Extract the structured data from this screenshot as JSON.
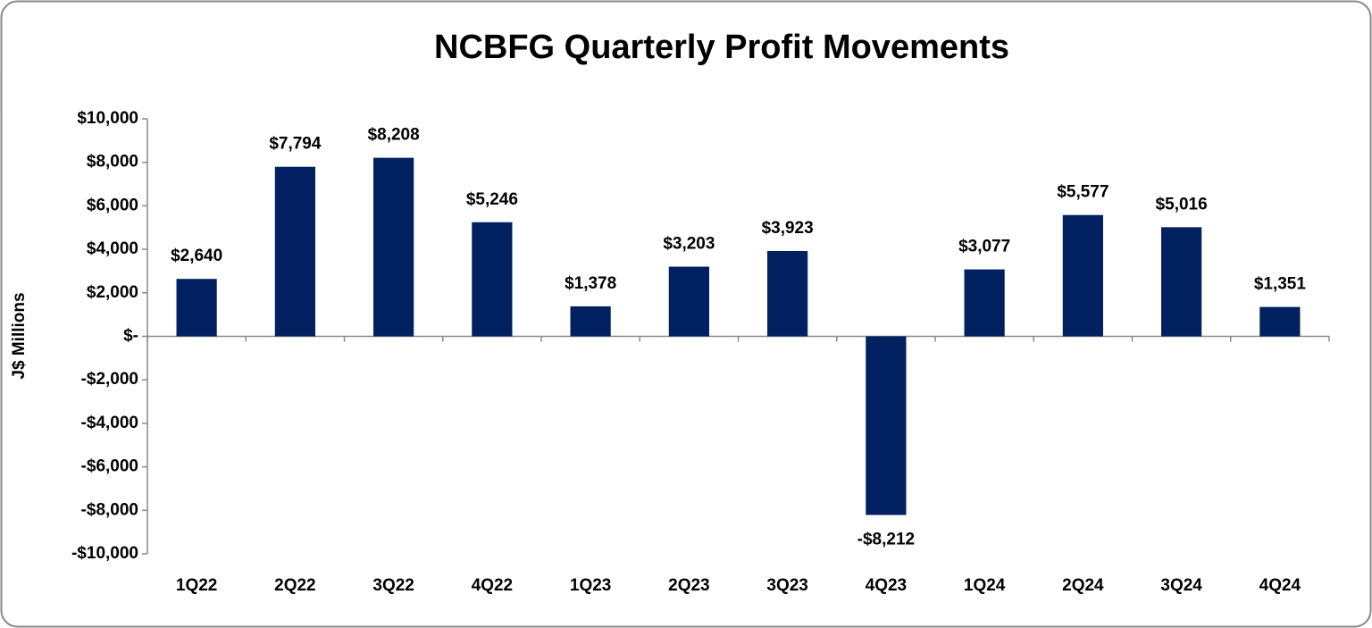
{
  "chart_data": {
    "type": "bar",
    "title": "NCBFG Quarterly Profit Movements",
    "y_label": "J$ Millions",
    "categories": [
      "1Q22",
      "2Q22",
      "3Q22",
      "4Q22",
      "1Q23",
      "2Q23",
      "3Q23",
      "4Q23",
      "1Q24",
      "2Q24",
      "3Q24",
      "4Q24"
    ],
    "values": [
      2640,
      7794,
      8208,
      5246,
      1378,
      3203,
      3923,
      -8212,
      3077,
      5577,
      5016,
      1351
    ],
    "value_labels": [
      "$2,640",
      "$7,794",
      "$8,208",
      "$5,246",
      "$1,378",
      "$3,203",
      "$3,923",
      "-$8,212",
      "$3,077",
      "$5,577",
      "$5,016",
      "$1,351"
    ],
    "color": "#002060",
    "ylim": [
      -10000,
      10000
    ],
    "yticks": [
      {
        "value": -10000,
        "label": "-$10,000"
      },
      {
        "value": -8000,
        "label": "-$8,000"
      },
      {
        "value": -6000,
        "label": "-$6,000"
      },
      {
        "value": -4000,
        "label": "-$4,000"
      },
      {
        "value": -2000,
        "label": "-$2,000"
      },
      {
        "value": 0,
        "label": "$-"
      },
      {
        "value": 2000,
        "label": "$2,000"
      },
      {
        "value": 4000,
        "label": "$4,000"
      },
      {
        "value": 6000,
        "label": "$6,000"
      },
      {
        "value": 8000,
        "label": "$8,000"
      },
      {
        "value": 10000,
        "label": "$10,000"
      }
    ],
    "grid": false
  }
}
